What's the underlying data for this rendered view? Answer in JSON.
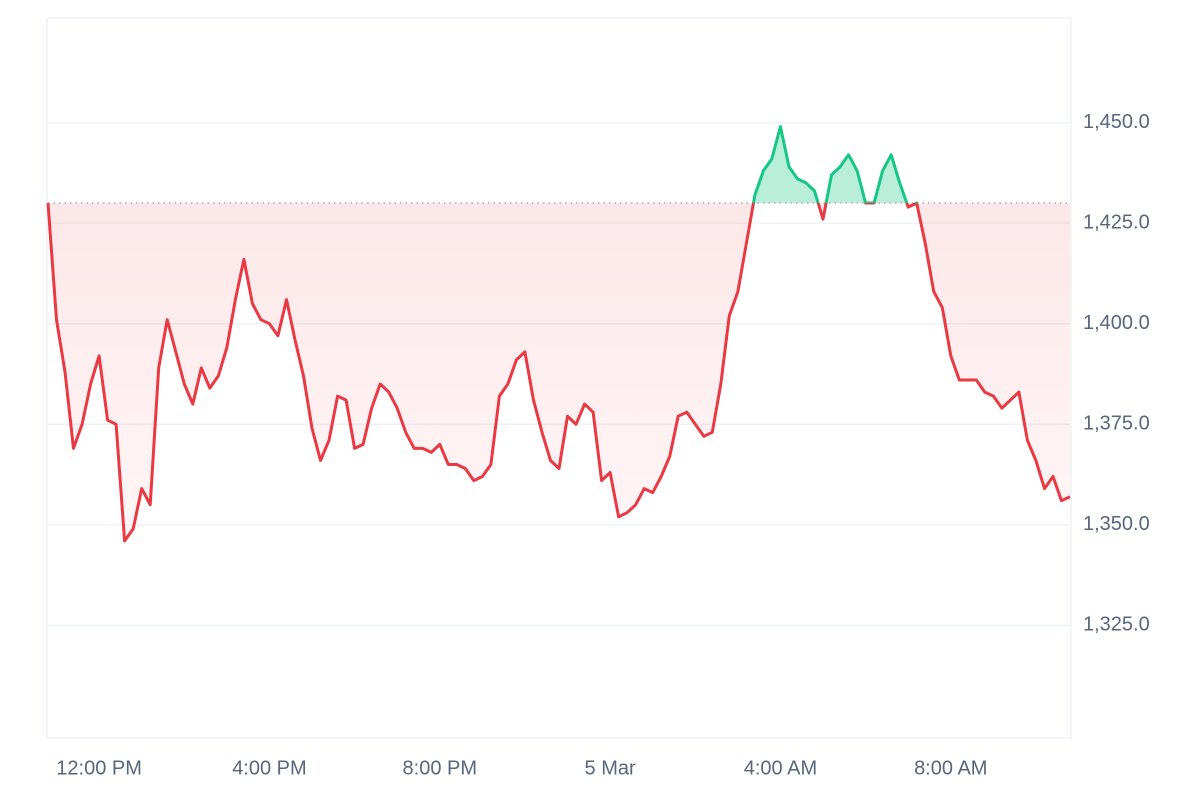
{
  "chart_data": {
    "type": "line",
    "x": [
      10.8,
      11.0,
      11.2,
      11.4,
      11.6,
      11.8,
      12.0,
      12.2,
      12.4,
      12.6,
      12.8,
      13.0,
      13.2,
      13.4,
      13.6,
      13.8,
      14.0,
      14.2,
      14.4,
      14.6,
      14.8,
      15.0,
      15.2,
      15.4,
      15.6,
      15.8,
      16.0,
      16.2,
      16.4,
      16.6,
      16.8,
      17.0,
      17.2,
      17.4,
      17.6,
      17.8,
      18.0,
      18.2,
      18.4,
      18.6,
      18.8,
      19.0,
      19.2,
      19.4,
      19.6,
      19.8,
      20.0,
      20.2,
      20.4,
      20.6,
      20.8,
      21.0,
      21.2,
      21.4,
      21.6,
      21.8,
      22.0,
      22.2,
      22.4,
      22.6,
      22.8,
      23.0,
      23.2,
      23.4,
      23.6,
      23.8,
      24.0,
      24.2,
      24.4,
      24.6,
      24.8,
      25.0,
      25.2,
      25.4,
      25.6,
      25.8,
      26.0,
      26.2,
      26.4,
      26.6,
      26.8,
      27.0,
      27.2,
      27.4,
      27.6,
      27.8,
      28.0,
      28.2,
      28.4,
      28.6,
      28.8,
      29.0,
      29.2,
      29.4,
      29.6,
      29.8,
      30.0,
      30.2,
      30.4,
      30.6,
      30.8,
      31.0,
      31.2,
      31.4,
      31.6,
      31.8,
      32.0,
      32.2,
      32.4,
      32.6,
      32.8,
      33.0,
      33.2,
      33.4,
      33.6,
      33.8,
      34.0,
      34.2,
      34.4,
      34.6,
      34.8
    ],
    "values": [
      1430,
      1401,
      1388,
      1369,
      1375,
      1385,
      1392,
      1376,
      1375,
      1346,
      1349,
      1359,
      1355,
      1389,
      1401,
      1393,
      1385,
      1380,
      1389,
      1384,
      1387,
      1394,
      1406,
      1416,
      1405,
      1401,
      1400,
      1397,
      1406,
      1396,
      1387,
      1374,
      1366,
      1371,
      1382,
      1381,
      1369,
      1370,
      1379,
      1385,
      1383,
      1379,
      1373,
      1369,
      1369,
      1368,
      1370,
      1365,
      1365,
      1364,
      1361,
      1362,
      1365,
      1382,
      1385,
      1391,
      1393,
      1381,
      1373,
      1366,
      1364,
      1377,
      1375,
      1380,
      1378,
      1361,
      1363,
      1352,
      1353,
      1355,
      1359,
      1358,
      1362,
      1367,
      1377,
      1378,
      1375,
      1372,
      1373,
      1385,
      1402,
      1408,
      1420,
      1432,
      1438,
      1441,
      1449,
      1439,
      1436,
      1435,
      1433,
      1426,
      1437,
      1439,
      1442,
      1438,
      1430,
      1430,
      1438,
      1442,
      1435,
      1429,
      1430,
      1420,
      1408,
      1404,
      1392,
      1386,
      1386,
      1386,
      1383,
      1382,
      1379,
      1381,
      1383,
      1371,
      1366,
      1359,
      1362,
      1356,
      1357
    ],
    "reference": 1430,
    "color_above": "#16c784",
    "color_below": "#ea3943",
    "xlim": [
      10.8,
      34.8
    ],
    "xticks": [
      {
        "value": 12,
        "label": "12:00 PM"
      },
      {
        "value": 16,
        "label": "4:00 PM"
      },
      {
        "value": 20,
        "label": "8:00 PM"
      },
      {
        "value": 24,
        "label": "5 Mar"
      },
      {
        "value": 28,
        "label": "4:00 AM"
      },
      {
        "value": 32,
        "label": "8:00 AM"
      }
    ],
    "ylim": [
      1297,
      1476
    ],
    "yticks": [
      {
        "value": 1325,
        "label": "1,325.0"
      },
      {
        "value": 1350,
        "label": "1,350.0"
      },
      {
        "value": 1375,
        "label": "1,375.0"
      },
      {
        "value": 1400,
        "label": "1,400.0"
      },
      {
        "value": 1425,
        "label": "1,425.0"
      },
      {
        "value": 1450,
        "label": "1,450.0"
      }
    ],
    "grid": true
  }
}
